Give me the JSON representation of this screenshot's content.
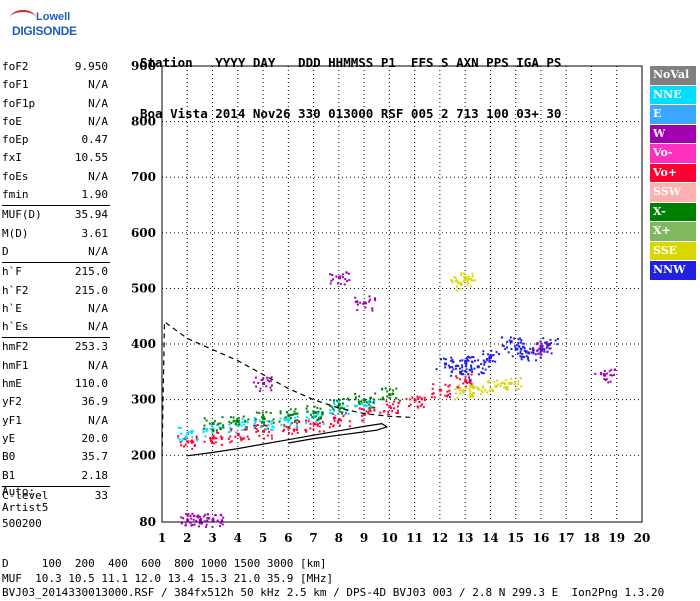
{
  "logo": {
    "line1": "Lowell",
    "line2": "DIGISONDE"
  },
  "header": {
    "line1": "Station   YYYY DAY   DDD HHMMSS P1  FFS S AXN PPS IGA PS",
    "line2": "Boa Vista 2014 Nov26 330 013000 RSF 005 2 713 100 03+ 30"
  },
  "params": [
    [
      {
        "k": "foF2",
        "v": "9.950"
      },
      {
        "k": "foF1",
        "v": "N/A"
      },
      {
        "k": "foF1p",
        "v": "N/A"
      },
      {
        "k": "foE",
        "v": "N/A"
      },
      {
        "k": "foEp",
        "v": "0.47"
      },
      {
        "k": "fxI",
        "v": "10.55"
      },
      {
        "k": "foEs",
        "v": "N/A"
      },
      {
        "k": "fmin",
        "v": "1.90"
      }
    ],
    [
      {
        "k": "MUF(D)",
        "v": "35.94"
      },
      {
        "k": "M(D)",
        "v": "3.61"
      },
      {
        "k": "D",
        "v": "N/A"
      }
    ],
    [
      {
        "k": "h`F",
        "v": "215.0"
      },
      {
        "k": "h`F2",
        "v": "215.0"
      },
      {
        "k": "h`E",
        "v": "N/A"
      },
      {
        "k": "h`Es",
        "v": "N/A"
      }
    ],
    [
      {
        "k": "hmF2",
        "v": "253.3"
      },
      {
        "k": "hmF1",
        "v": "N/A"
      },
      {
        "k": "hmE",
        "v": "110.0"
      },
      {
        "k": "yF2",
        "v": "36.9"
      },
      {
        "k": "yF1",
        "v": "N/A"
      },
      {
        "k": "yE",
        "v": "20.0"
      },
      {
        "k": "B0",
        "v": "35.7"
      },
      {
        "k": "B1",
        "v": "2.18"
      }
    ],
    [
      {
        "k": "C-level",
        "v": "33"
      }
    ]
  ],
  "extra": {
    "line1": "Auto:",
    "line2": "Artist5",
    "line3": "500200"
  },
  "footer": {
    "line1": "D     100  200  400  600  800 1000 1500 3000 [km]",
    "line2": "MUF  10.3 10.5 11.1 12.0 13.4 15.3 21.0 35.9 [MHz]",
    "line3": "BVJ03_2014330013000.RSF / 384fx512h 50 kHz 2.5 km / DPS-4D BVJ03 003 / 2.8 N 299.3 E  Ion2Png 1.3.20"
  },
  "legend": [
    {
      "label": "NoVal",
      "color": "#808080"
    },
    {
      "label": "NNE",
      "color": "#00ddff"
    },
    {
      "label": "E",
      "color": "#3ba6ff"
    },
    {
      "label": "W",
      "color": "#a000b0"
    },
    {
      "label": "Vo-",
      "color": "#ff30c0"
    },
    {
      "label": "Vo+",
      "color": "#ff0030"
    },
    {
      "label": "SSW",
      "color": "#ffb0b0"
    },
    {
      "label": "X-",
      "color": "#008000"
    },
    {
      "label": "X+",
      "color": "#80b860"
    },
    {
      "label": "SSE",
      "color": "#d8d800"
    },
    {
      "label": "NNW",
      "color": "#2020e0"
    }
  ],
  "chart_data": {
    "type": "scatter",
    "title": "",
    "xlabel": "",
    "ylabel": "",
    "xlim": [
      1,
      20
    ],
    "ylim": [
      80,
      900
    ],
    "xticks": [
      1,
      2,
      3,
      4,
      5,
      6,
      7,
      8,
      9,
      10,
      11,
      12,
      13,
      14,
      15,
      16,
      17,
      18,
      19,
      20
    ],
    "yticks": [
      80,
      200,
      300,
      400,
      500,
      600,
      700,
      800,
      900
    ],
    "grid": true,
    "series": [
      {
        "name": "Vo+",
        "points": [
          [
            2.0,
            225
          ],
          [
            3.0,
            232
          ],
          [
            4.0,
            238
          ],
          [
            5.0,
            244
          ],
          [
            6.0,
            250
          ],
          [
            7.0,
            257
          ],
          [
            8.0,
            265
          ],
          [
            9.0,
            275
          ],
          [
            10.0,
            288
          ],
          [
            11.0,
            300
          ],
          [
            12.0,
            318
          ],
          [
            13.0,
            335
          ]
        ]
      },
      {
        "name": "NNW",
        "points": [
          [
            12.2,
            365
          ],
          [
            13.0,
            370
          ],
          [
            14.0,
            380
          ],
          [
            15.0,
            392
          ],
          [
            16.0,
            390
          ],
          [
            14.8,
            405
          ],
          [
            13.5,
            360
          ],
          [
            15.5,
            385
          ],
          [
            12.8,
            350
          ],
          [
            16.3,
            400
          ]
        ]
      },
      {
        "name": "NNE",
        "points": [
          [
            2.0,
            240
          ],
          [
            3.0,
            248
          ],
          [
            4.0,
            255
          ],
          [
            5.0,
            260
          ],
          [
            6.0,
            265
          ],
          [
            7.0,
            270
          ],
          [
            8.0,
            285
          ],
          [
            9.0,
            290
          ]
        ]
      },
      {
        "name": "X-",
        "points": [
          [
            3.0,
            258
          ],
          [
            4.0,
            262
          ],
          [
            5.0,
            268
          ],
          [
            6.0,
            272
          ],
          [
            7.0,
            278
          ],
          [
            8.0,
            292
          ],
          [
            9.0,
            300
          ],
          [
            10.0,
            310
          ]
        ]
      },
      {
        "name": "SSE",
        "points": [
          [
            12.9,
            315
          ],
          [
            13.5,
            320
          ],
          [
            14.2,
            325
          ],
          [
            14.8,
            330
          ],
          [
            12.8,
            510
          ],
          [
            13.0,
            520
          ]
        ]
      },
      {
        "name": "W",
        "points": [
          [
            2.0,
            84
          ],
          [
            2.5,
            84
          ],
          [
            3.0,
            84
          ],
          [
            9.0,
            475
          ],
          [
            8.0,
            520
          ],
          [
            5.0,
            330
          ],
          [
            16.0,
            395
          ],
          [
            18.5,
            345
          ]
        ]
      }
    ],
    "traces": {
      "profile": [
        [
          2.0,
          199
        ],
        [
          3.0,
          205
        ],
        [
          4.0,
          212
        ],
        [
          5.0,
          220
        ],
        [
          6.0,
          228
        ],
        [
          7.0,
          236
        ],
        [
          8.0,
          244
        ],
        [
          9.0,
          252
        ],
        [
          9.7,
          257
        ],
        [
          9.9,
          251
        ],
        [
          9.5,
          245
        ],
        [
          9.0,
          242
        ],
        [
          8.0,
          236
        ],
        [
          7.0,
          230
        ],
        [
          6.0,
          222
        ]
      ],
      "dashed": [
        [
          1.0,
          200
        ],
        [
          1.1,
          440
        ],
        [
          2.0,
          410
        ],
        [
          3.0,
          390
        ],
        [
          4.0,
          370
        ],
        [
          5.0,
          345
        ],
        [
          6.0,
          320
        ],
        [
          7.0,
          300
        ],
        [
          8.0,
          285
        ],
        [
          9.0,
          275
        ],
        [
          10.0,
          270
        ],
        [
          11.0,
          268
        ]
      ]
    }
  }
}
